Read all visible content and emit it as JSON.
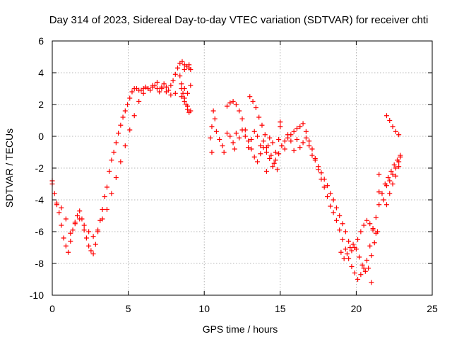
{
  "chart_data": {
    "type": "scatter",
    "title": "Day 314 of 2023, Sidereal Day-to-day VTEC variation (SDTVAR) for receiver chti",
    "xlabel": "GPS time / hours",
    "ylabel": "SDTVAR / TECUs",
    "xlim": [
      0,
      25
    ],
    "ylim": [
      -10,
      6
    ],
    "xticks": [
      0,
      5,
      10,
      15,
      20,
      25
    ],
    "yticks": [
      -10,
      -8,
      -6,
      -4,
      -2,
      0,
      2,
      4,
      6
    ],
    "grid": true,
    "marker": "+",
    "color": "#ff0000",
    "series": [
      {
        "name": "SDTVAR",
        "x": [
          0.0,
          0.15,
          0.3,
          0.45,
          0.6,
          0.75,
          0.9,
          1.05,
          1.2,
          1.35,
          1.5,
          1.65,
          1.8,
          1.95,
          2.1,
          2.25,
          2.4,
          2.55,
          2.7,
          2.85,
          3.0,
          3.15,
          3.3,
          3.45,
          3.6,
          3.75,
          3.9,
          4.05,
          4.2,
          4.35,
          4.5,
          4.65,
          4.8,
          4.95,
          5.1,
          5.25,
          5.4,
          5.55,
          5.7,
          5.85,
          6.0,
          6.15,
          6.3,
          6.45,
          6.6,
          6.75,
          6.9,
          7.05,
          7.2,
          7.35,
          7.5,
          7.65,
          7.8,
          7.95,
          8.1,
          8.25,
          8.4,
          8.55,
          8.7,
          8.85,
          9.0,
          9.1,
          0.0,
          0.3,
          0.6,
          0.9,
          1.2,
          1.5,
          1.8,
          2.1,
          2.4,
          2.7,
          3.0,
          3.3,
          3.6,
          3.9,
          4.2,
          4.5,
          4.8,
          5.1,
          5.4,
          5.7,
          6.0,
          6.3,
          6.6,
          6.9,
          7.2,
          7.5,
          7.8,
          8.1,
          8.4,
          8.7,
          9.0,
          8.5,
          8.6,
          8.7,
          8.8,
          8.9,
          9.0,
          8.5,
          8.7,
          8.9,
          9.1,
          8.5,
          8.7,
          8.9,
          9.1,
          10.6,
          10.7,
          10.8,
          11.0,
          11.2,
          11.3,
          11.5,
          11.7,
          11.9,
          12.1,
          12.3,
          12.5,
          12.7,
          12.9,
          13.1,
          13.3,
          13.5,
          13.7,
          13.9,
          14.1,
          14.3,
          14.5,
          14.7,
          14.9,
          15.1,
          15.3,
          15.5,
          15.7,
          15.9,
          16.1,
          16.3,
          16.5,
          16.7,
          16.9,
          17.1,
          17.3,
          17.5,
          17.7,
          17.9,
          18.1,
          18.3,
          18.5,
          18.7,
          18.9,
          19.1,
          19.3,
          19.5,
          19.7,
          19.9,
          20.1,
          20.3,
          20.5,
          20.7,
          20.9,
          21.1,
          21.3,
          21.5,
          21.7,
          21.9,
          22.1,
          22.3,
          22.5,
          22.7,
          22.9,
          11.5,
          11.7,
          11.9,
          12.1,
          12.3,
          12.5,
          12.7,
          12.9,
          13.1,
          13.3,
          13.5,
          13.7,
          13.9,
          14.1,
          14.3,
          14.5,
          14.7,
          14.9,
          15.1,
          15.3,
          15.5,
          15.7,
          15.9,
          16.1,
          16.3,
          16.5,
          16.7,
          16.9,
          17.1,
          17.3,
          17.5,
          17.7,
          17.9,
          18.1,
          18.3,
          18.5,
          18.7,
          18.9,
          19.1,
          19.3,
          19.5,
          19.7,
          19.9,
          20.1,
          20.3,
          20.5,
          20.7,
          20.9,
          21.1,
          21.3,
          13.0,
          13.2,
          13.4,
          13.6,
          13.8,
          14.0,
          14.2,
          14.4,
          14.6,
          14.8,
          15.0,
          19.0,
          19.2,
          19.4,
          19.6,
          19.8,
          20.0,
          20.2,
          20.4,
          20.6,
          20.8,
          21.0,
          21.2,
          21.4,
          22.0,
          22.2,
          22.4,
          22.6,
          22.8,
          21.5,
          21.8,
          22.0,
          22.2,
          22.4,
          22.6,
          22.8,
          22.9,
          22.0,
          22.2,
          22.4,
          22.6,
          22.8,
          21.5,
          21.0,
          15.0,
          10.5,
          10.4,
          10.5,
          12.0,
          14.1
        ],
        "y": [
          -2.8,
          -3.6,
          -4.3,
          -4.8,
          -5.6,
          -6.4,
          -6.9,
          -7.3,
          -6.6,
          -5.9,
          -5.4,
          -5.0,
          -4.7,
          -5.2,
          -5.9,
          -6.4,
          -6.9,
          -7.2,
          -7.4,
          -6.8,
          -6.0,
          -5.3,
          -4.6,
          -3.8,
          -3.2,
          -2.2,
          -1.5,
          -1.0,
          -0.4,
          0.2,
          0.7,
          1.2,
          1.6,
          2.0,
          2.4,
          2.8,
          3.0,
          3.0,
          2.9,
          2.9,
          3.0,
          3.1,
          3.0,
          2.9,
          3.1,
          3.2,
          3.0,
          2.8,
          3.0,
          3.3,
          3.1,
          2.9,
          3.2,
          3.5,
          3.9,
          4.3,
          4.6,
          4.7,
          4.5,
          4.4,
          4.3,
          4.2,
          -3.0,
          -4.2,
          -4.5,
          -5.2,
          -6.1,
          -5.5,
          -5.2,
          -5.6,
          -6.0,
          -6.3,
          -5.9,
          -5.2,
          -4.6,
          -3.6,
          -2.6,
          -1.6,
          -0.6,
          0.4,
          1.3,
          2.2,
          2.7,
          3.0,
          3.2,
          3.4,
          3.1,
          2.8,
          2.6,
          2.7,
          3.8,
          4.2,
          4.5,
          3.0,
          2.7,
          2.4,
          2.0,
          1.7,
          1.5,
          3.3,
          3.0,
          2.7,
          3.2,
          2.5,
          2.2,
          1.9,
          1.6,
          1.6,
          1.1,
          0.3,
          -0.2,
          -0.6,
          -1.0,
          0.2,
          0.0,
          -0.4,
          0.2,
          -0.1,
          0.4,
          0.0,
          -0.7,
          -0.2,
          0.3,
          0.0,
          -0.6,
          -0.3,
          -0.7,
          -0.1,
          -0.4,
          -1.0,
          -0.2,
          -0.6,
          -0.8,
          0.1,
          -0.3,
          -0.9,
          -0.2,
          -0.7,
          -0.4,
          -0.1,
          -0.6,
          -1.2,
          -1.5,
          -2.1,
          -2.7,
          -3.2,
          -3.8,
          -4.4,
          -4.8,
          -5.3,
          -5.9,
          -6.5,
          -7.1,
          -7.7,
          -8.2,
          -8.6,
          -9.0,
          -8.7,
          -8.3,
          -7.8,
          -6.9,
          -5.9,
          -5.1,
          -4.3,
          -3.6,
          -3.0,
          -2.6,
          -2.2,
          -1.8,
          -1.5,
          -1.3,
          1.9,
          2.1,
          2.2,
          2.0,
          1.6,
          1.1,
          0.4,
          -0.3,
          -0.8,
          -1.3,
          -1.6,
          -1.1,
          -0.7,
          -1.0,
          -1.4,
          -1.9,
          -1.5,
          -1.1,
          -0.6,
          -0.3,
          -0.1,
          0.1,
          0.3,
          0.5,
          0.6,
          0.8,
          0.3,
          -0.3,
          -0.8,
          -1.4,
          -1.9,
          -2.3,
          -2.7,
          -3.1,
          -3.6,
          -4.0,
          -4.5,
          -5.0,
          -5.5,
          -6.0,
          -6.6,
          -7.2,
          -7.0,
          -6.5,
          -6.0,
          -5.6,
          -5.3,
          -5.5,
          -5.8,
          -6.1,
          2.5,
          2.2,
          1.8,
          1.2,
          0.7,
          0.1,
          -0.6,
          -1.2,
          -1.7,
          -2.1,
          0.9,
          -7.3,
          -7.7,
          -7.4,
          -7.0,
          -6.8,
          -7.1,
          -7.6,
          -8.1,
          -8.5,
          -8.3,
          -7.5,
          -6.7,
          -6.0,
          -3.1,
          -2.8,
          -2.4,
          -2.0,
          -1.6,
          -3.5,
          -4.0,
          -4.3,
          -3.6,
          -3.0,
          -2.5,
          -1.9,
          -1.2,
          1.3,
          1.0,
          0.6,
          0.3,
          0.1,
          -2.4,
          -9.2,
          0.6,
          0.6,
          -0.1,
          -1.0,
          -0.8,
          -2.2
        ]
      }
    ]
  }
}
